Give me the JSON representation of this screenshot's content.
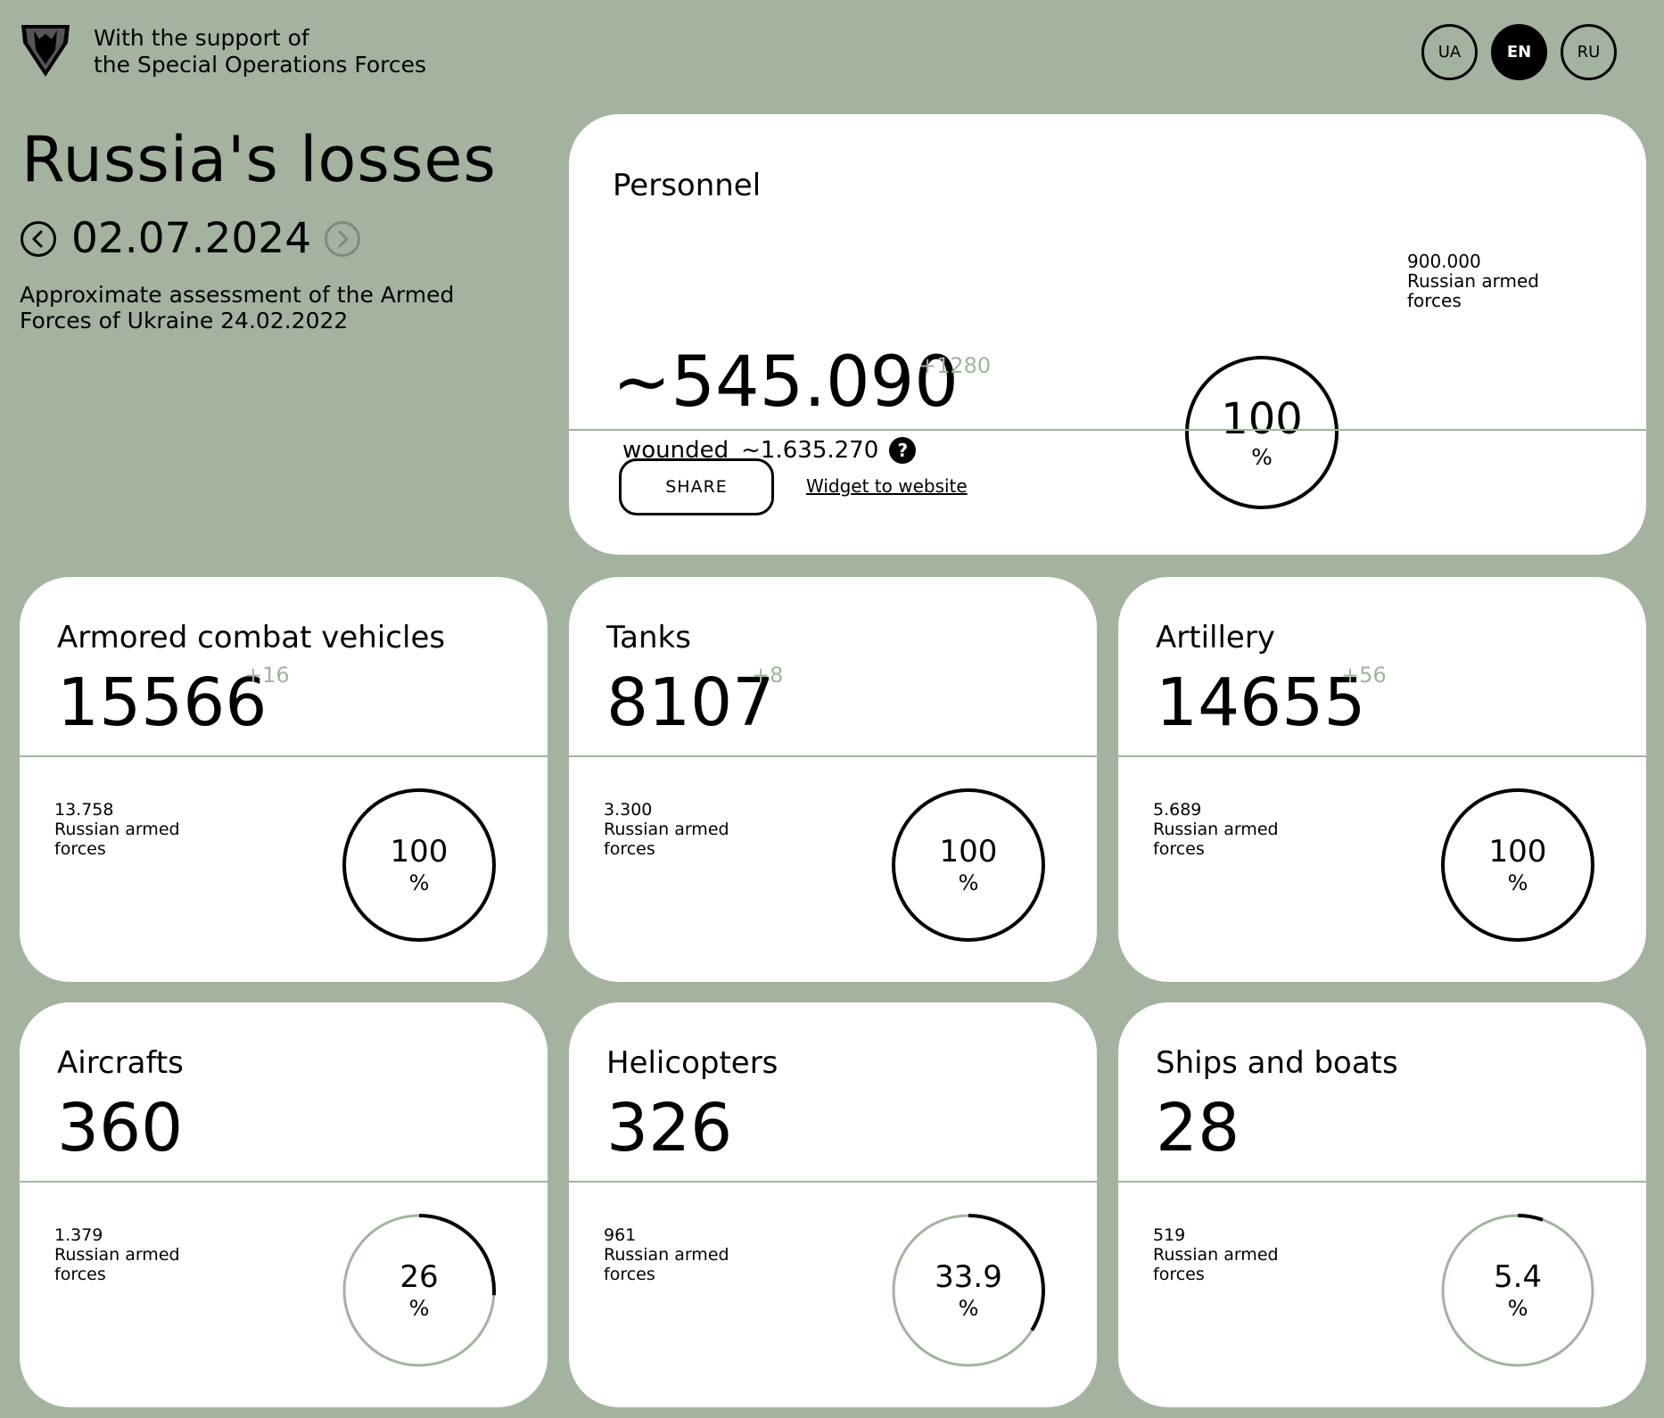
{
  "header": {
    "support_line1": "With the support of",
    "support_line2": "the Special Operations Forces",
    "logo_icon": "sof-shield-logo",
    "languages": [
      "UA",
      "EN",
      "RU"
    ],
    "active_language": "EN"
  },
  "page": {
    "title": "Russia's losses",
    "date": "02.07.2024",
    "prev_icon": "chevron-left-icon",
    "next_icon": "chevron-right-icon",
    "subtitle": "Approximate assessment of the Armed Forces of Ukraine 24.02.2022"
  },
  "personnel": {
    "label": "Personnel",
    "value": "~545.090",
    "delta": "+1280",
    "wounded_label": "wounded",
    "wounded_value": "~1.635.270",
    "help_icon": "?",
    "ref_value": "900.000",
    "ref_label": "Russian armed forces",
    "percent": "100",
    "percent_fraction": 1.0,
    "share_label": "SHARE",
    "widget_label": "Widget to website"
  },
  "categories": [
    {
      "label": "Armored combat vehicles",
      "value": "15566",
      "delta": "+16",
      "ref_value": "13.758",
      "ref_label": "Russian armed forces",
      "percent": "100",
      "percent_fraction": 1.0
    },
    {
      "label": "Tanks",
      "value": "8107",
      "delta": "+8",
      "ref_value": "3.300",
      "ref_label": "Russian armed forces",
      "percent": "100",
      "percent_fraction": 1.0
    },
    {
      "label": "Artillery",
      "value": "14655",
      "delta": "+56",
      "ref_value": "5.689",
      "ref_label": "Russian armed forces",
      "percent": "100",
      "percent_fraction": 1.0
    },
    {
      "label": "Aircrafts",
      "value": "360",
      "delta": "",
      "ref_value": "1.379",
      "ref_label": "Russian armed forces",
      "percent": "26",
      "percent_fraction": 0.26
    },
    {
      "label": "Helicopters",
      "value": "326",
      "delta": "",
      "ref_value": "961",
      "ref_label": "Russian armed forces",
      "percent": "33.9",
      "percent_fraction": 0.339
    },
    {
      "label": "Ships and boats",
      "value": "28",
      "delta": "",
      "ref_value": "519",
      "ref_label": "Russian armed forces",
      "percent": "5.4",
      "percent_fraction": 0.054
    }
  ],
  "percent_sign": "%",
  "colors": {
    "background": "#a3b3a0",
    "card": "#ffffff",
    "ring_track": "#a3b3a0",
    "ring_fill": "#000000",
    "delta": "#a3b3a0"
  }
}
